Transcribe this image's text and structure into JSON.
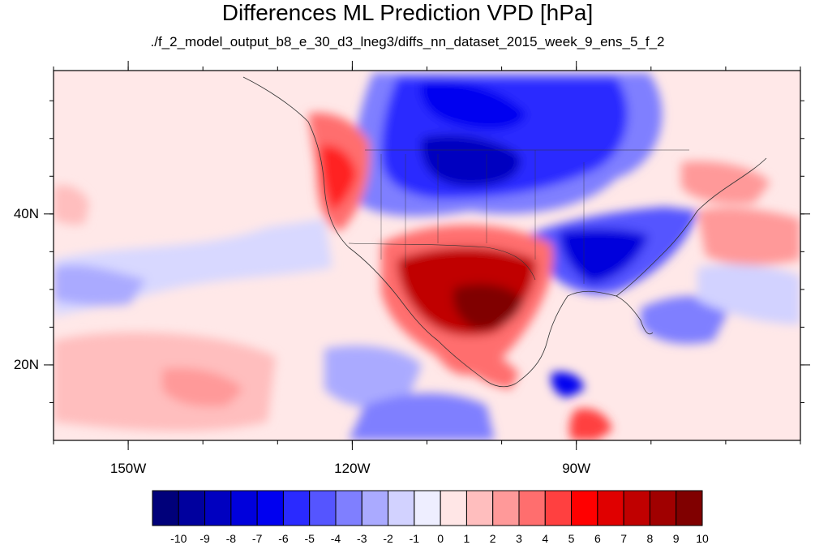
{
  "title": "Differences ML Prediction VPD [hPa]",
  "subtitle": "./f_2_model_output_b8_e_30_d3_lneg3/diffs_nn_dataset_2015_week_9_ens_5_f_2",
  "map": {
    "lon_range": [
      -160,
      -60
    ],
    "lat_range": [
      10,
      59
    ],
    "lon_ticks": [
      {
        "value": -150,
        "label": "150W"
      },
      {
        "value": -120,
        "label": "120W"
      },
      {
        "value": -90,
        "label": "90W"
      }
    ],
    "lat_ticks": [
      {
        "value": 40,
        "label": "40N"
      },
      {
        "value": 20,
        "label": "20N"
      }
    ]
  },
  "colorbar": {
    "labels": [
      "-10",
      "-9",
      "-8",
      "-7",
      "-6",
      "-5",
      "-4",
      "-3",
      "-2",
      "-1",
      "0",
      "1",
      "2",
      "3",
      "4",
      "5",
      "6",
      "7",
      "8",
      "9",
      "10"
    ],
    "colors": [
      "#00007a",
      "#00009e",
      "#0000c0",
      "#0000dc",
      "#0000f0",
      "#2a2aff",
      "#5555ff",
      "#7f7fff",
      "#aaaaff",
      "#d2d2ff",
      "#eeeeff",
      "#ffe6e6",
      "#ffbebe",
      "#ff9999",
      "#ff6e6e",
      "#ff4040",
      "#ff0000",
      "#e00000",
      "#c00000",
      "#a00000",
      "#800000"
    ]
  }
}
